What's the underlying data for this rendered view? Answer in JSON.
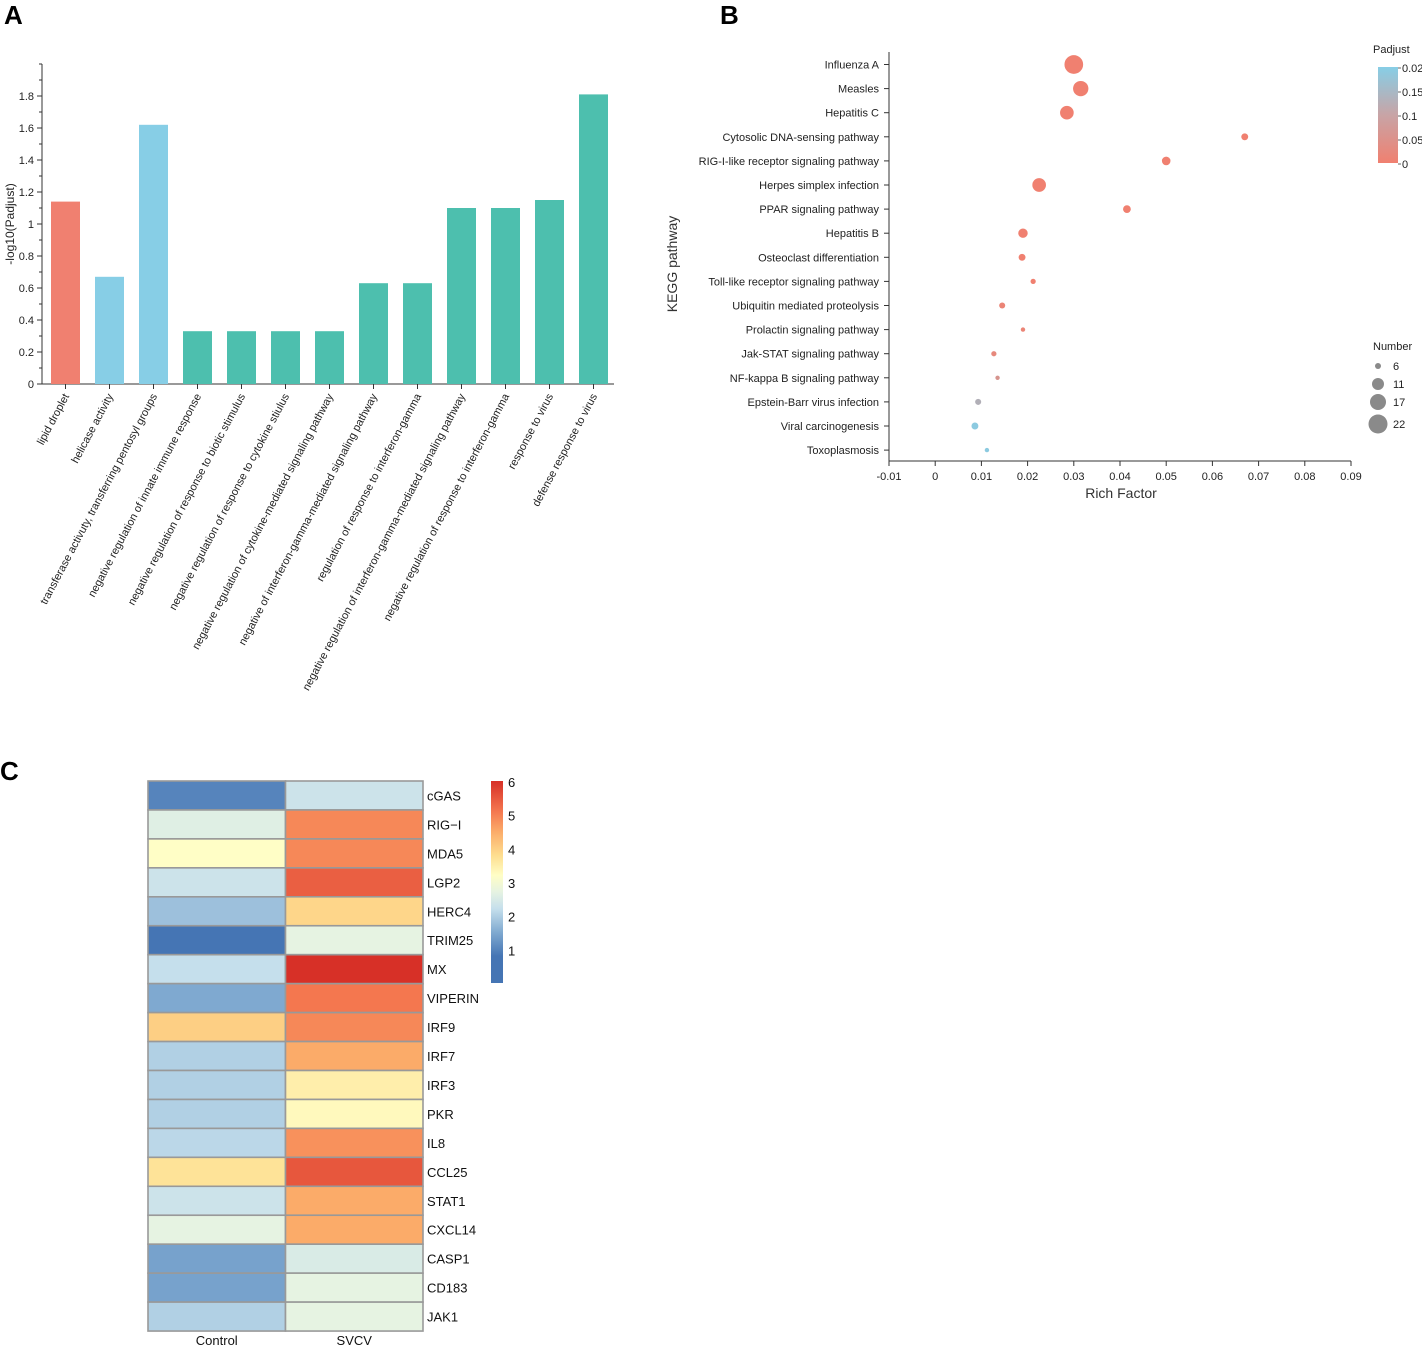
{
  "panels": {
    "a": "A",
    "b": "B",
    "c": "C"
  },
  "chart_data": [
    {
      "id": "A",
      "type": "bar",
      "title": "",
      "xlabel": "",
      "ylabel": "-log10(Padjust)",
      "ylim": [
        0,
        2
      ],
      "yticks": [
        "0",
        "0.2",
        "0.4",
        "0.6",
        "0.8",
        "1",
        "1.2",
        "1.4",
        "1.6",
        "1.8"
      ],
      "categories": [
        "lipid droplet",
        "helicase activity",
        "transferase activuty, transferring pentosyl groups",
        "negative regulation of innate immune response",
        "negative regulation of response to biotic stimulus",
        "negative regulation of response to cytokine stiulus",
        "negative regulation of cytokine-mediated signaling pathway",
        "negative of interferon-gamma-mediated signaling pathway",
        "regulation of response to interferon-gamma",
        "negative regulation of interferon-gamma-mediated signaling pathway",
        "negative regulation of response to interferon-gamma",
        "response to virus",
        "defense response to virus"
      ],
      "values": [
        1.14,
        0.67,
        1.62,
        0.33,
        0.33,
        0.33,
        0.33,
        0.63,
        0.63,
        1.1,
        1.1,
        1.15,
        1.81
      ],
      "colors": [
        "#F08070",
        "#87CEE6",
        "#87CEE6",
        "#4DBFAE",
        "#4DBFAE",
        "#4DBFAE",
        "#4DBFAE",
        "#4DBFAE",
        "#4DBFAE",
        "#4DBFAE",
        "#4DBFAE",
        "#4DBFAE",
        "#4DBFAE"
      ]
    },
    {
      "id": "B",
      "type": "scatter",
      "xlabel": "Rich Factor",
      "ylabel": "KEGG pathway",
      "xlim": [
        -0.01,
        0.09
      ],
      "xticks": [
        "-0.01",
        "0",
        "0.01",
        "0.02",
        "0.03",
        "0.04",
        "0.05",
        "0.06",
        "0.07",
        "0.08",
        "0.09"
      ],
      "categories": [
        "Influenza A",
        "Measles",
        "Hepatitis C",
        "Cytosolic DNA-sensing pathway",
        "RIG-I-like receptor signaling pathway",
        "Herpes simplex infection",
        "PPAR signaling pathway",
        "Hepatitis B",
        "Osteoclast differentiation",
        "Toll-like receptor signaling pathway",
        "Ubiquitin mediated proteolysis",
        "Prolactin signaling pathway",
        "Jak-STAT signaling pathway",
        "NF-kappa B signaling pathway",
        "Epstein-Barr virus infection",
        "Viral carcinogenesis",
        "Toxoplasmosis"
      ],
      "x": [
        0.03,
        0.0315,
        0.0285,
        0.067,
        0.05,
        0.0225,
        0.0415,
        0.019,
        0.0188,
        0.0212,
        0.0145,
        0.019,
        0.0127,
        0.0135,
        0.0093,
        0.0086,
        0.0112
      ],
      "number": [
        22,
        18,
        16,
        8,
        10,
        16,
        9,
        11,
        8,
        6,
        7,
        5,
        6,
        5,
        7,
        8,
        5
      ],
      "padjust": [
        0.0,
        0.0,
        0.0,
        0.0,
        0.0,
        0.0,
        0.0,
        0.0,
        0.0,
        0.0,
        0.01,
        0.01,
        0.02,
        0.05,
        0.12,
        0.19,
        0.19
      ],
      "color_legend": {
        "title": "Padjust",
        "labels": [
          "0.02",
          "0.15",
          "0.1",
          "0.05",
          "0"
        ],
        "low_color": "#F08070",
        "high_color": "#87CEE6"
      },
      "size_legend": {
        "title": "Number",
        "labels": [
          "6",
          "11",
          "17",
          "22"
        ],
        "values": [
          6,
          11,
          17,
          22
        ]
      }
    },
    {
      "id": "C",
      "type": "heatmap",
      "rows": [
        "cGAS",
        "RIG−I",
        "MDA5",
        "LGP2",
        "HERC4",
        "TRIM25",
        "MX",
        "VIPERIN",
        "IRF9",
        "IRF7",
        "IRF3",
        "PKR",
        "IL8",
        "CCL25",
        "STAT1",
        "CXCL14",
        "CASP1",
        "CD183",
        "JAK1"
      ],
      "columns": [
        "Control",
        "SVCV"
      ],
      "values": [
        [
          1.0,
          2.3
        ],
        [
          2.6,
          4.9
        ],
        [
          3.2,
          4.9
        ],
        [
          2.3,
          5.4
        ],
        [
          1.8,
          3.9
        ],
        [
          0.8,
          2.7
        ],
        [
          2.2,
          6.0
        ],
        [
          1.5,
          5.1
        ],
        [
          4.0,
          4.9
        ],
        [
          2.0,
          4.5
        ],
        [
          2.0,
          3.5
        ],
        [
          2.0,
          3.3
        ],
        [
          2.1,
          4.8
        ],
        [
          3.7,
          5.5
        ],
        [
          2.3,
          4.5
        ],
        [
          2.7,
          4.5
        ],
        [
          1.4,
          2.5
        ],
        [
          1.4,
          2.7
        ],
        [
          2.0,
          2.7
        ]
      ],
      "scale": {
        "min": 0,
        "max": 6,
        "labels": [
          "6",
          "5",
          "4",
          "3",
          "2",
          "1"
        ]
      }
    }
  ]
}
